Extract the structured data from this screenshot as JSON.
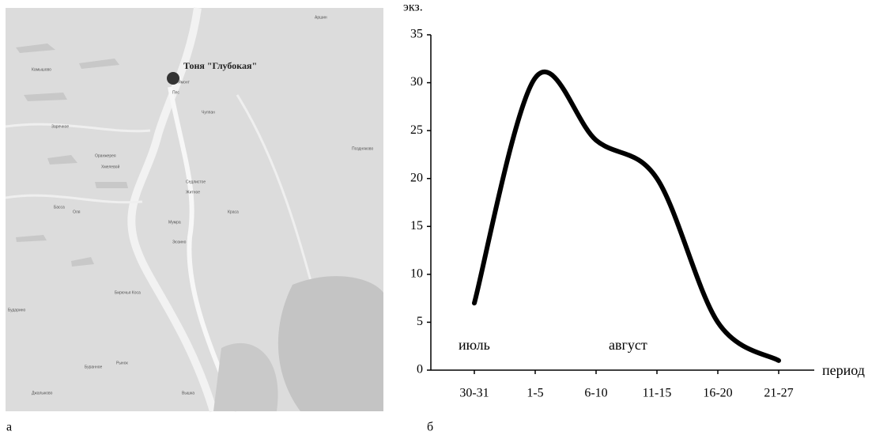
{
  "map": {
    "site_label": "Тоня \"Глубокая\"",
    "places": [
      "Ямонт",
      "Пес",
      "Камышово",
      "Заречное",
      "Оранжерея",
      "Хмелевой",
      "Чулпан",
      "Аршин",
      "Поздняково",
      "Седлистое",
      "Житное",
      "Басса",
      "Оля",
      "Мумра",
      "Краса",
      "Зюзино",
      "Бирючья Коса",
      "Бударино",
      "Рынок",
      "Буранное",
      "Джалыково",
      "Вышка"
    ],
    "panel_label": "а"
  },
  "panel_label": "б",
  "chart_data": {
    "type": "line",
    "y_label": "экз.",
    "x_label": "период",
    "categories": [
      "30-31",
      "1-5",
      "6-10",
      "11-15",
      "16-20",
      "21-27"
    ],
    "values": [
      7,
      30.5,
      24,
      20,
      5,
      1
    ],
    "color": "#000000",
    "ylim": [
      0,
      35
    ],
    "yticks": [
      0,
      5,
      10,
      15,
      20,
      25,
      30,
      35
    ],
    "annotations": [
      "июль",
      "август"
    ]
  }
}
